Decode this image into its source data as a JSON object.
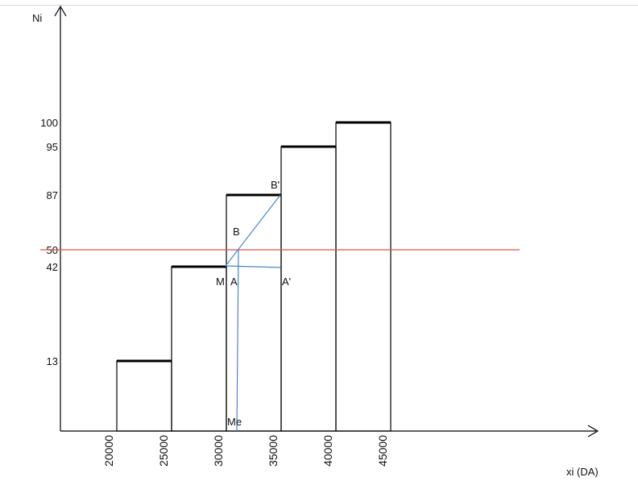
{
  "chart_data": {
    "type": "bar",
    "title": "",
    "xlabel": "xi (DA)",
    "ylabel": "Ni",
    "x_ticks": [
      "20000",
      "25000",
      "30000",
      "35000",
      "40000",
      "45000"
    ],
    "bins": [
      {
        "from": 20000,
        "to": 25000,
        "value": 13
      },
      {
        "from": 25000,
        "to": 30000,
        "value": 42
      },
      {
        "from": 30000,
        "to": 35000,
        "value": 87
      },
      {
        "from": 35000,
        "to": 40000,
        "value": 95
      },
      {
        "from": 40000,
        "to": 45000,
        "value": 100
      }
    ],
    "y_ticks": [
      "13",
      "42",
      "50",
      "87",
      "95",
      "100"
    ],
    "median_line": 50,
    "point_labels": [
      "M",
      "A",
      "A'",
      "B",
      "B'",
      "Me"
    ],
    "grid": false,
    "legend": "none",
    "colors": {
      "bars": "#000000",
      "median_line": "#d9534f",
      "construction": "#4a86c8"
    }
  }
}
